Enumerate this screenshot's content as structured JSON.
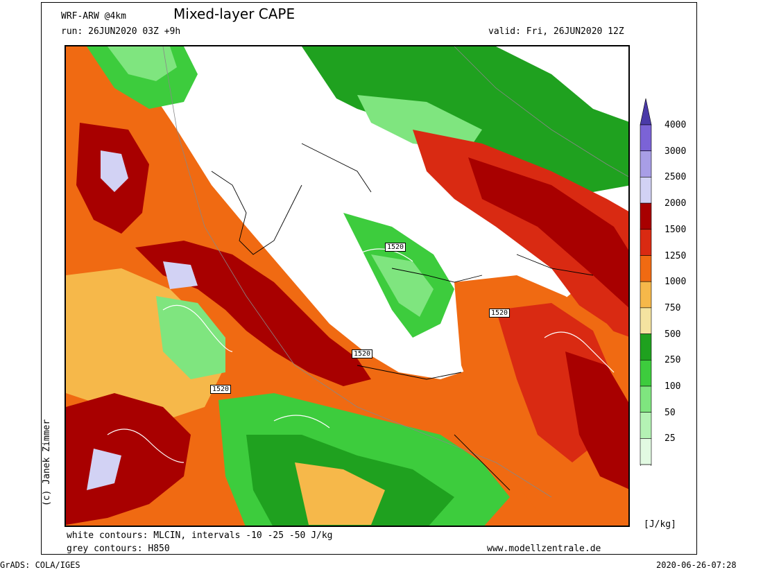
{
  "header": {
    "model": "WRF-ARW @4km",
    "title": "Mixed-layer CAPE",
    "run": "run: 26JUN2020 03Z +9h",
    "valid": "valid: Fri, 26JUN2020 12Z"
  },
  "credit": "(c) Janek Zimmer",
  "footer": {
    "white_contours": "white contours: MLCIN, intervals -10 -25 -50 J/kg",
    "grey_contours": "grey contours: H850",
    "website": "www.modellzentrale.de",
    "grads": "GrADS: COLA/IGES",
    "timestamp": "2020-06-26-07:28"
  },
  "legend": {
    "unit": "[J/kg]",
    "levels": [
      {
        "label": "4000",
        "color": "#7b63d6"
      },
      {
        "label": "3000",
        "color": "#a89ee6"
      },
      {
        "label": "2500",
        "color": "#d2d2f4"
      },
      {
        "label": "2000",
        "color": "#a80000"
      },
      {
        "label": "1500",
        "color": "#d92a12"
      },
      {
        "label": "1250",
        "color": "#f06a12"
      },
      {
        "label": "1000",
        "color": "#f6b84a"
      },
      {
        "label": "750",
        "color": "#f4e3a0"
      },
      {
        "label": "500",
        "color": "#1fa11f"
      },
      {
        "label": "250",
        "color": "#3dcc3d"
      },
      {
        "label": "100",
        "color": "#7fe57f"
      },
      {
        "label": "50",
        "color": "#b4f2b4"
      },
      {
        "label": "25",
        "color": "#e2fae2"
      }
    ],
    "top_color": "#4a3aa8"
  },
  "contour_labels": [
    "1520",
    "1520",
    "1520",
    "1520"
  ]
}
